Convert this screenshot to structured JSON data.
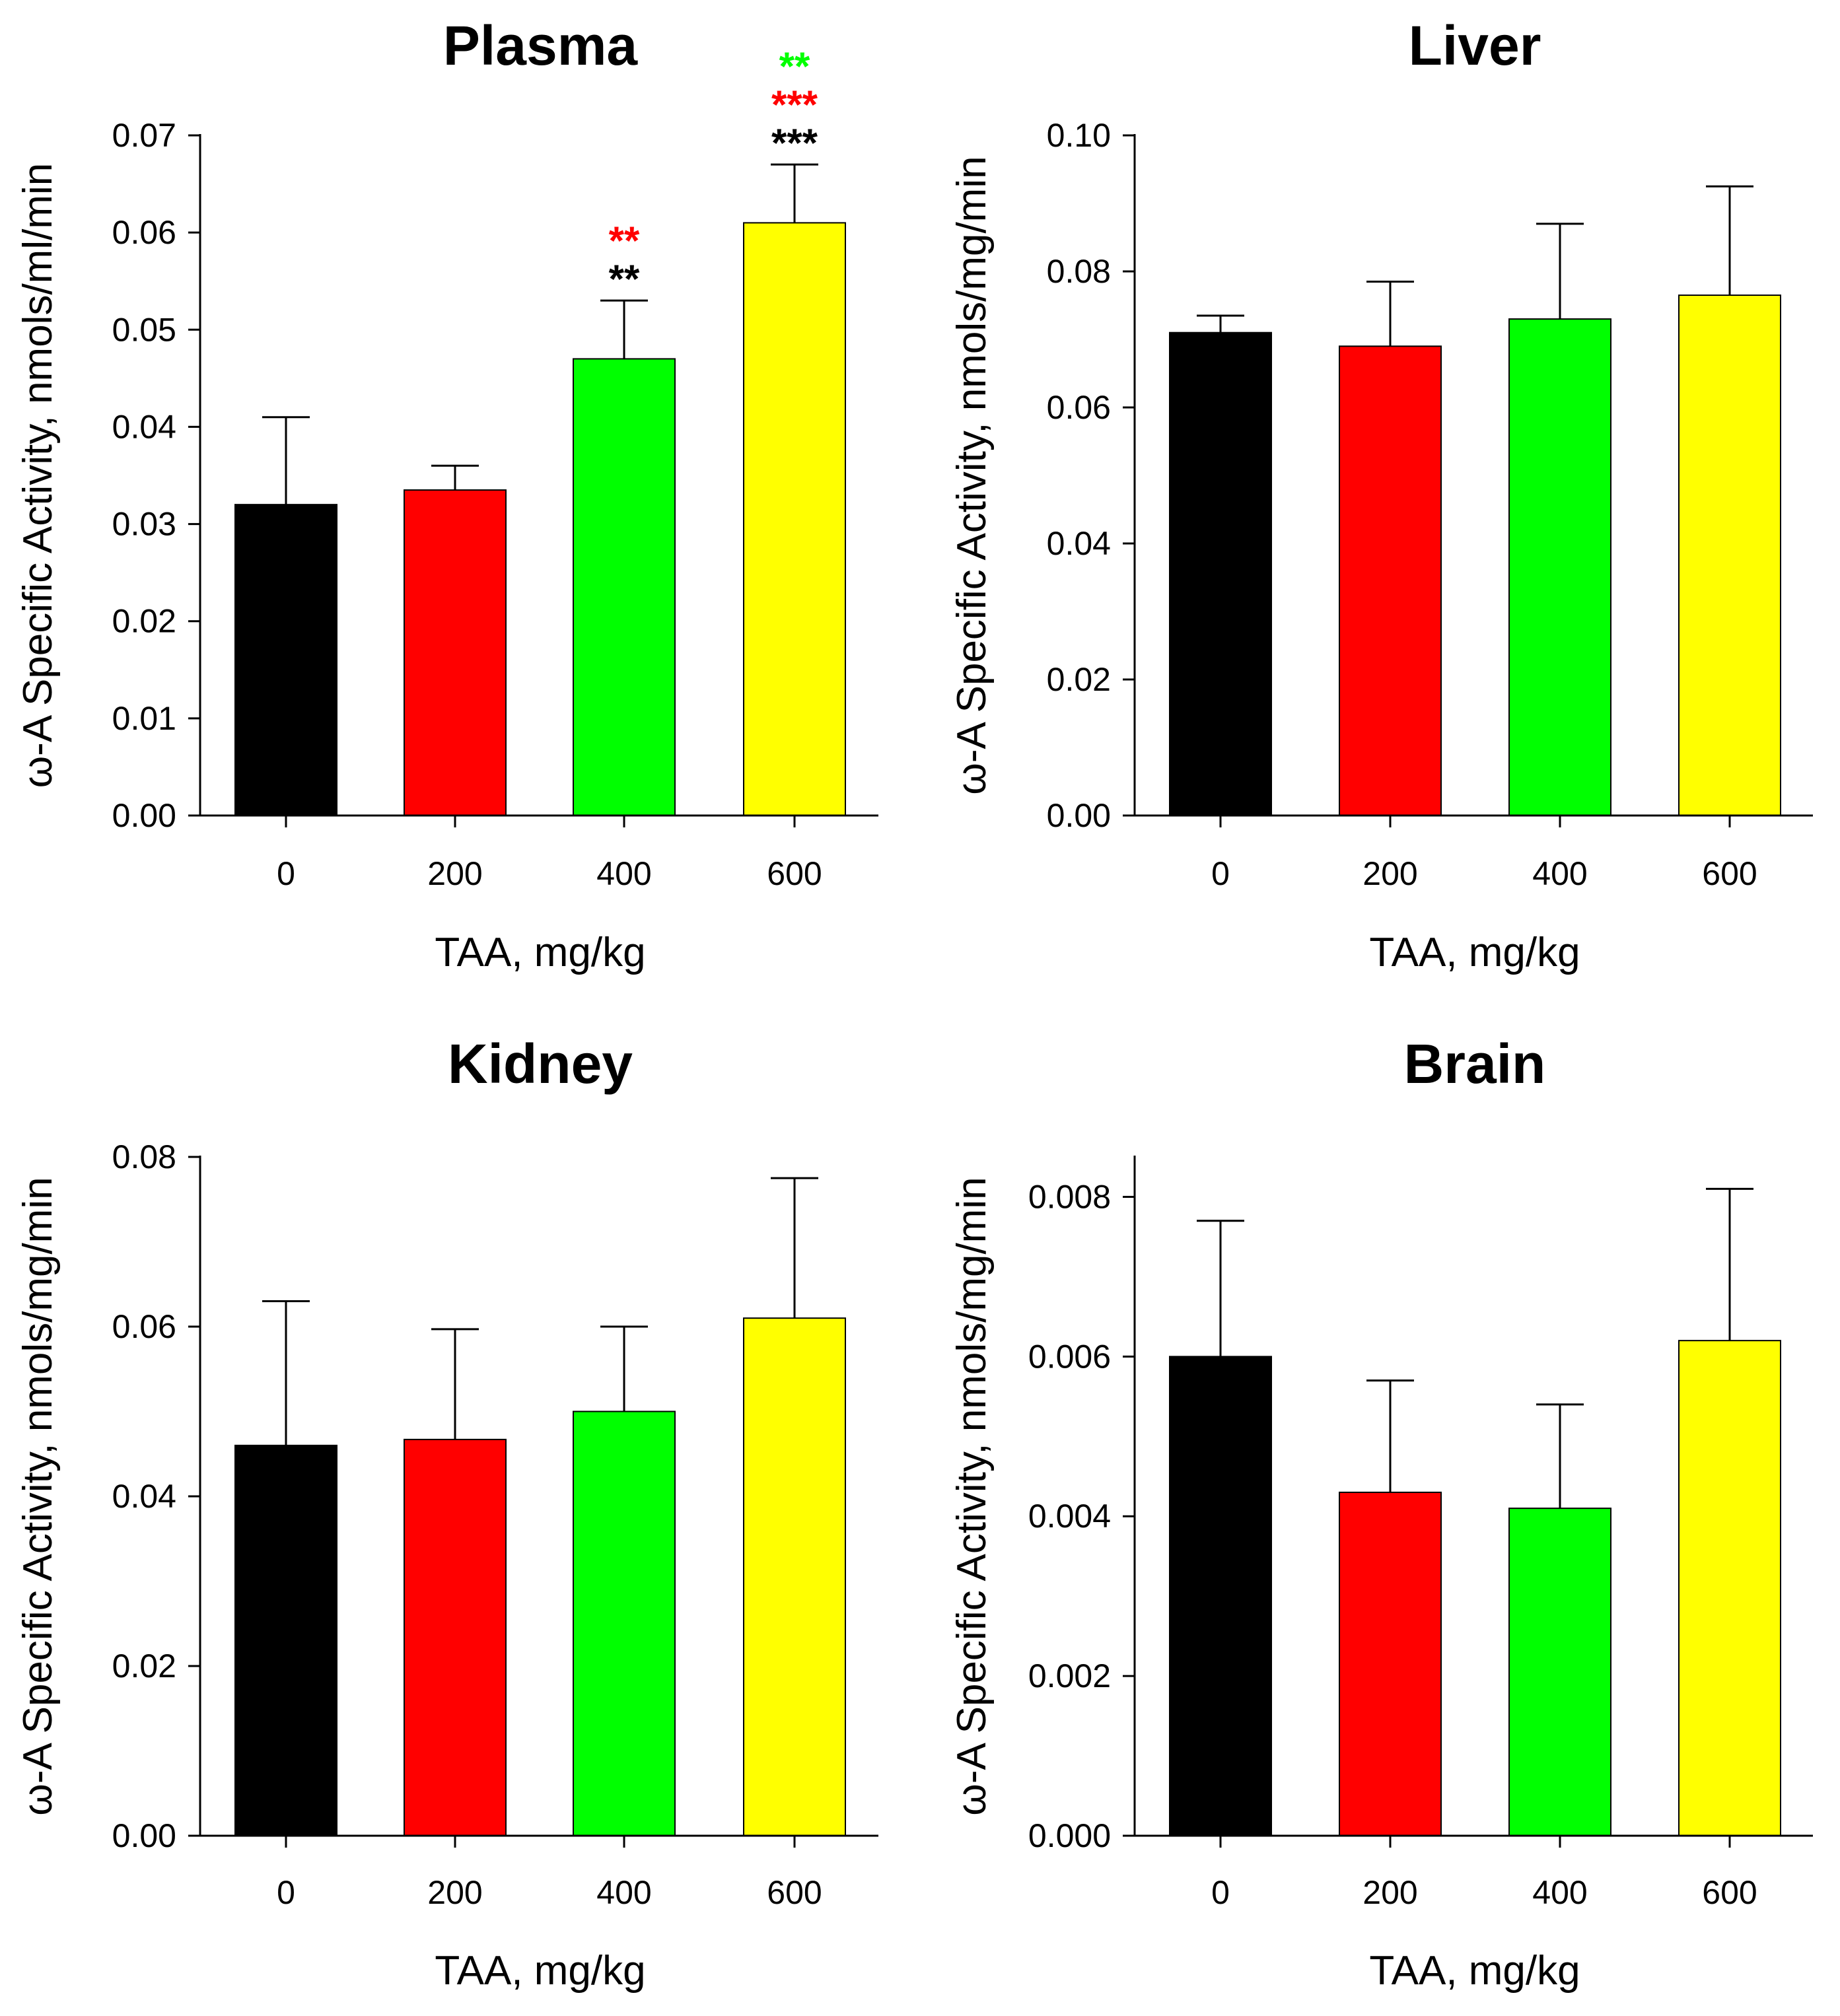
{
  "chart_data": [
    {
      "type": "bar",
      "title": "Plasma",
      "xlabel": "TAA, mg/kg",
      "ylabel": "ω-A Specific Activity, nmols/ml/min",
      "categories": [
        "0",
        "200",
        "400",
        "600"
      ],
      "values": [
        0.032,
        0.0335,
        0.047,
        0.061
      ],
      "errors": [
        0.009,
        0.0025,
        0.006,
        0.006
      ],
      "colors": [
        "#000000",
        "#ff0000",
        "#00ff00",
        "#ffff00"
      ],
      "ylim": [
        0,
        0.07
      ],
      "yticks": [
        "0.00",
        "0.01",
        "0.02",
        "0.03",
        "0.04",
        "0.05",
        "0.06",
        "0.07"
      ],
      "significance": [
        {
          "category": "400",
          "marks": [
            {
              "text": "**",
              "color": "#ff0000"
            },
            {
              "text": "**",
              "color": "#000000"
            }
          ]
        },
        {
          "category": "600",
          "marks": [
            {
              "text": "**",
              "color": "#00ff00"
            },
            {
              "text": "***",
              "color": "#ff0000"
            },
            {
              "text": "***",
              "color": "#000000"
            }
          ]
        }
      ]
    },
    {
      "type": "bar",
      "title": "Liver",
      "xlabel": "TAA, mg/kg",
      "ylabel": "ω-A Specific Activity, nmols/mg/min",
      "categories": [
        "0",
        "200",
        "400",
        "600"
      ],
      "values": [
        0.071,
        0.069,
        0.073,
        0.0765
      ],
      "errors": [
        0.0025,
        0.0095,
        0.014,
        0.016
      ],
      "colors": [
        "#000000",
        "#ff0000",
        "#00ff00",
        "#ffff00"
      ],
      "ylim": [
        0,
        0.1
      ],
      "yticks": [
        "0.00",
        "0.02",
        "0.04",
        "0.06",
        "0.08",
        "0.10"
      ],
      "significance": []
    },
    {
      "type": "bar",
      "title": "Kidney",
      "xlabel": "TAA, mg/kg",
      "ylabel": "ω-A Specific Activity, nmols/mg/min",
      "categories": [
        "0",
        "200",
        "400",
        "600"
      ],
      "values": [
        0.046,
        0.0467,
        0.05,
        0.061
      ],
      "errors": [
        0.017,
        0.013,
        0.01,
        0.0165
      ],
      "colors": [
        "#000000",
        "#ff0000",
        "#00ff00",
        "#ffff00"
      ],
      "ylim": [
        0,
        0.08
      ],
      "yticks": [
        "0.00",
        "0.02",
        "0.04",
        "0.06",
        "0.08"
      ],
      "significance": []
    },
    {
      "type": "bar",
      "title": "Brain",
      "xlabel": "TAA, mg/kg",
      "ylabel": "ω-A Specific Activity, nmols/mg/min",
      "categories": [
        "0",
        "200",
        "400",
        "600"
      ],
      "values": [
        0.006,
        0.0043,
        0.0041,
        0.0062
      ],
      "errors": [
        0.0017,
        0.0014,
        0.0013,
        0.0019
      ],
      "colors": [
        "#000000",
        "#ff0000",
        "#00ff00",
        "#ffff00"
      ],
      "ylim": [
        0,
        0.0085
      ],
      "yticks": [
        "0.000",
        "0.002",
        "0.004",
        "0.006",
        "0.008"
      ],
      "significance": []
    }
  ]
}
